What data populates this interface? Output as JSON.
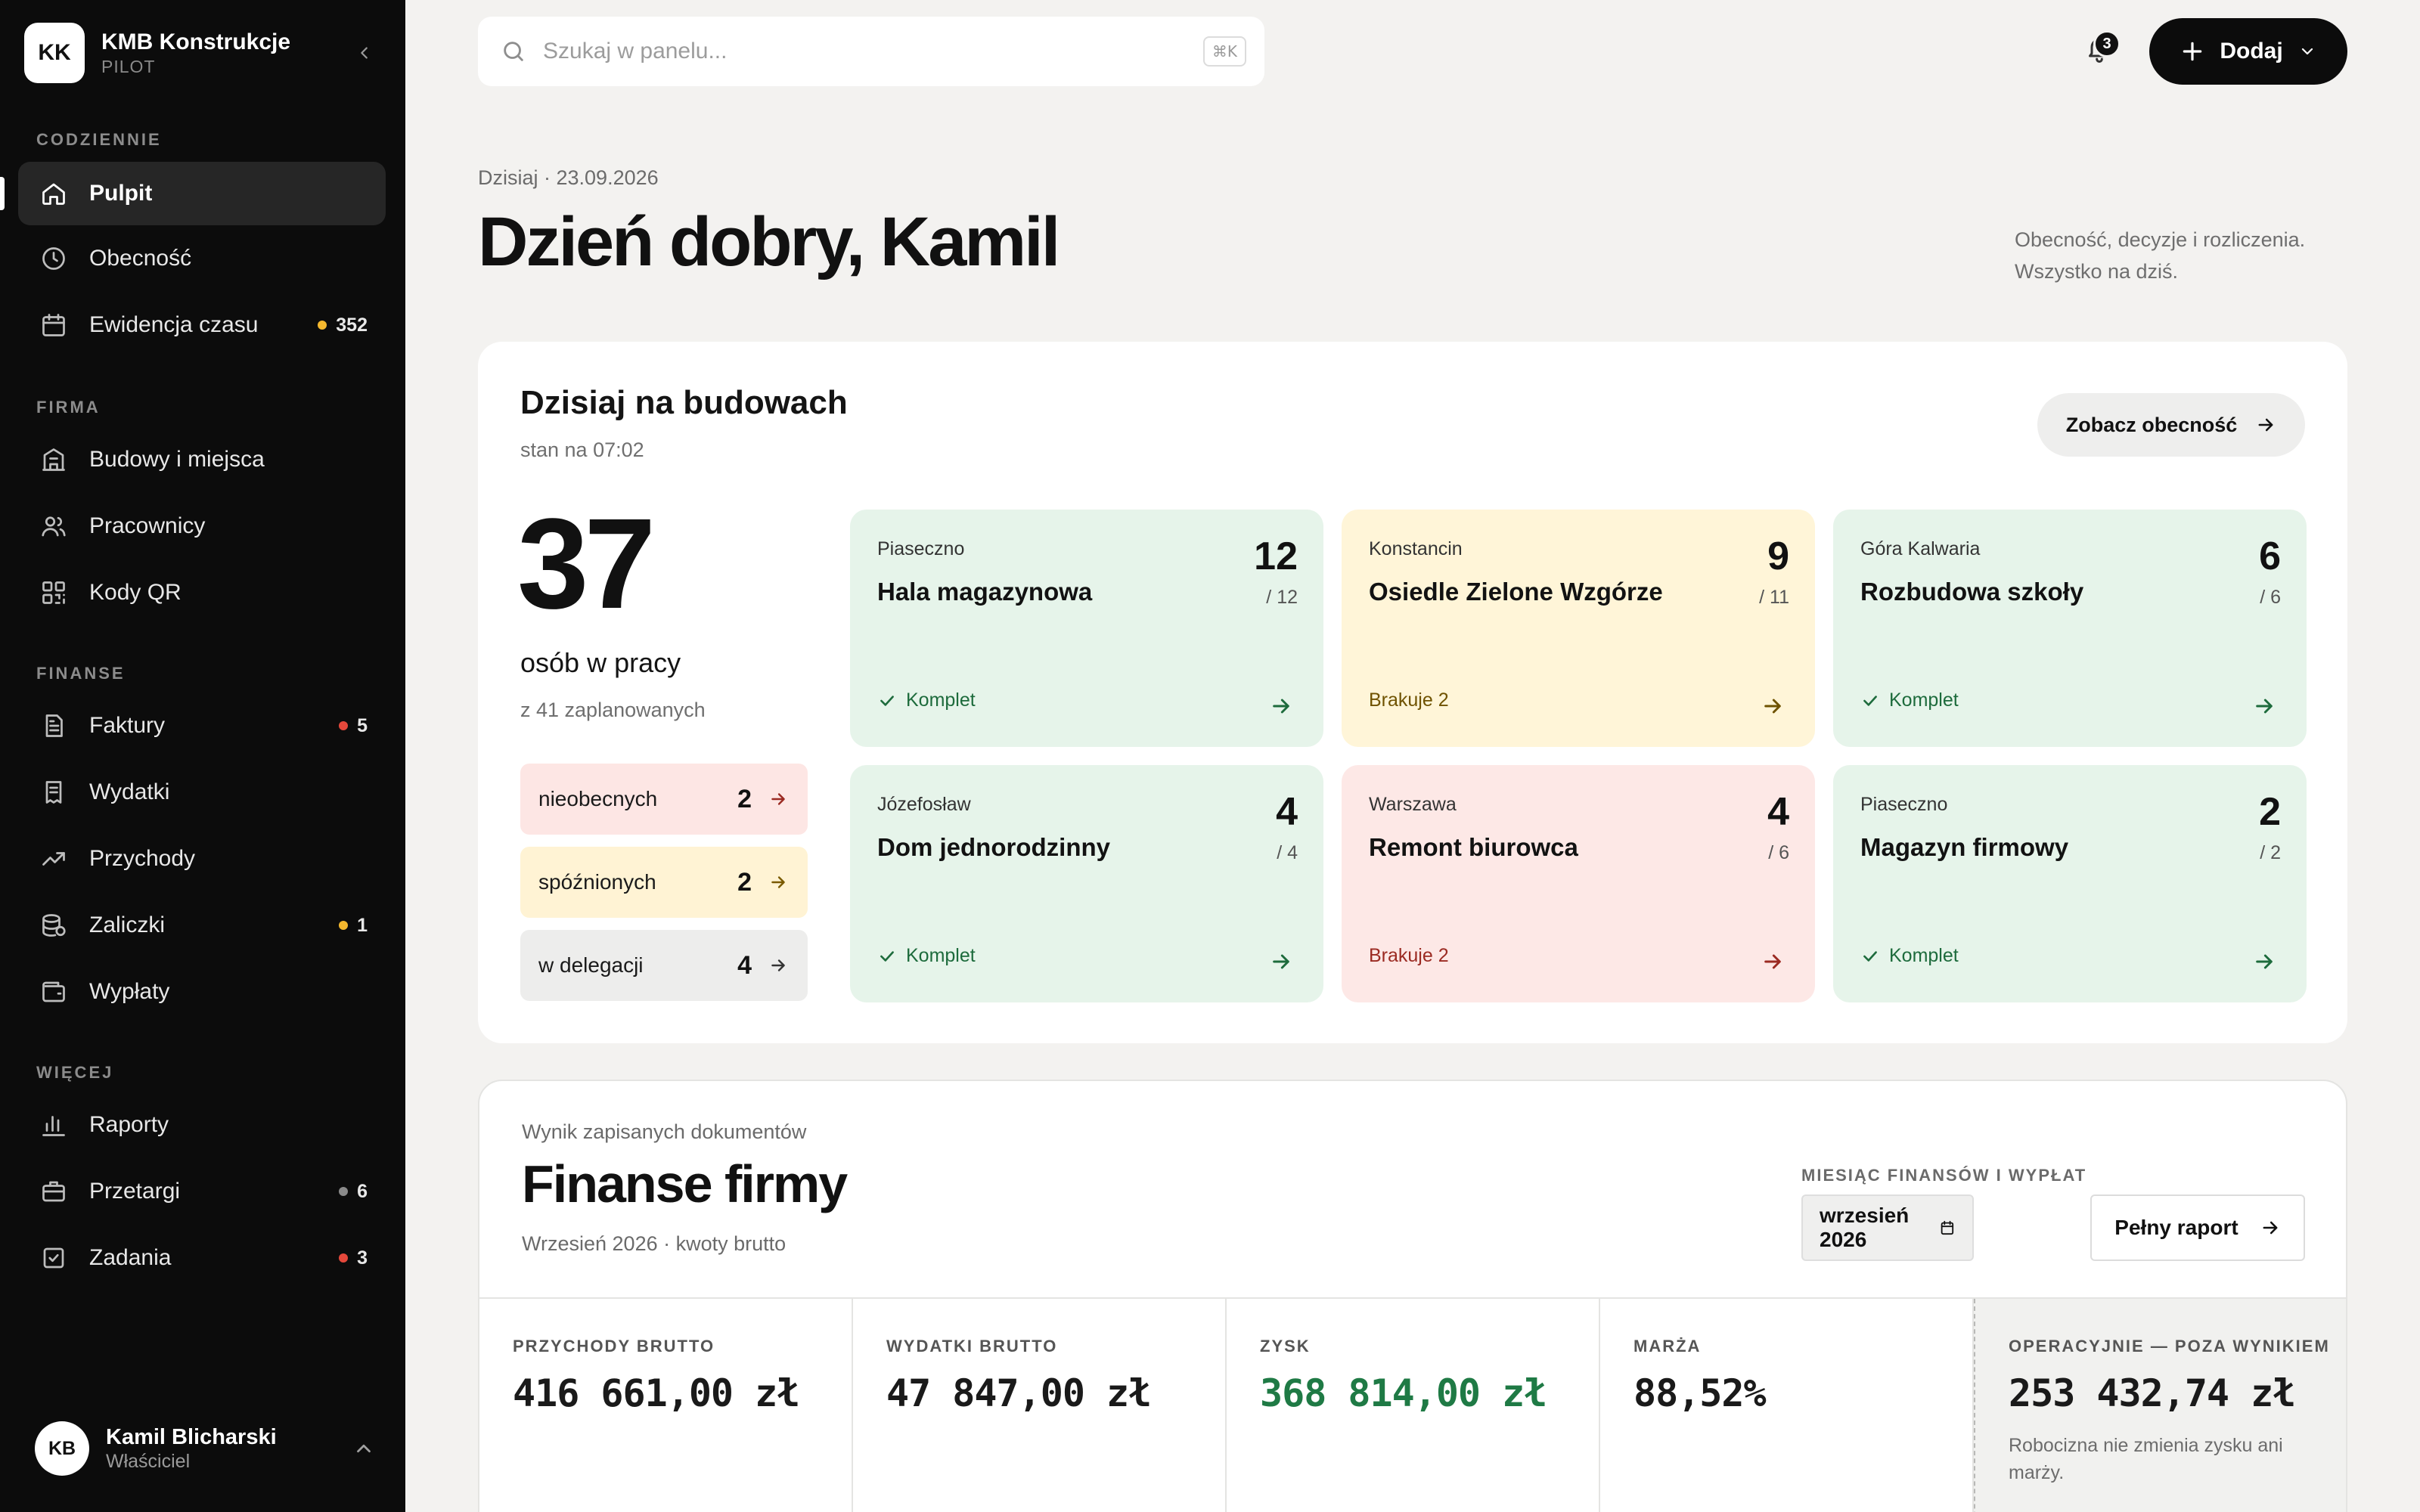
{
  "brand": {
    "initials": "KK",
    "name": "KMB Konstrukcje",
    "plan": "PILOT"
  },
  "sidebar": {
    "sections": [
      {
        "title": "CODZIENNIE"
      },
      {
        "title": "FIRMA"
      },
      {
        "title": "FINANSE"
      },
      {
        "title": "WIĘCEJ"
      }
    ],
    "items": [
      {
        "label": "Pulpit",
        "icon": "home-icon",
        "active": true
      },
      {
        "label": "Obecność",
        "icon": "clock-icon"
      },
      {
        "label": "Ewidencja czasu",
        "icon": "calendar-icon",
        "badge": "352",
        "badge_color": "#f5b82e"
      },
      {
        "label": "Budowy i miejsca",
        "icon": "building-icon"
      },
      {
        "label": "Pracownicy",
        "icon": "users-icon"
      },
      {
        "label": "Kody QR",
        "icon": "qr-icon"
      },
      {
        "label": "Faktury",
        "icon": "invoice-icon",
        "badge": "5",
        "badge_color": "#e5483b"
      },
      {
        "label": "Wydatki",
        "icon": "receipt-icon"
      },
      {
        "label": "Przychody",
        "icon": "trend-up-icon"
      },
      {
        "label": "Zaliczki",
        "icon": "coins-icon",
        "badge": "1",
        "badge_color": "#f5b82e"
      },
      {
        "label": "Wypłaty",
        "icon": "wallet-icon"
      },
      {
        "label": "Raporty",
        "icon": "bar-chart-icon"
      },
      {
        "label": "Przetargi",
        "icon": "briefcase-icon",
        "badge": "6",
        "badge_color": "#8a8a8a"
      },
      {
        "label": "Zadania",
        "icon": "checkbox-icon",
        "badge": "3",
        "badge_color": "#e5483b"
      }
    ]
  },
  "user": {
    "initials": "KB",
    "name": "Kamil Blicharski",
    "role": "Właściciel"
  },
  "topbar": {
    "search_placeholder": "Szukaj w panelu...",
    "shortcut": "⌘K",
    "notifications": "3",
    "add_label": "Dodaj"
  },
  "header": {
    "date": "Dzisiaj · 23.09.2026",
    "greeting": "Dzień dobry, Kamil",
    "note_line1": "Obecność, decyzje i rozliczenia.",
    "note_line2": "Wszystko na dziś."
  },
  "today": {
    "title": "Dzisiaj na budowach",
    "subtitle": "stan na 07:02",
    "button": "Zobacz obecność",
    "present": "37",
    "present_label": "osób w pracy",
    "planned": "z 41 zaplanowanych",
    "statuses": [
      {
        "label": "nieobecnych",
        "value": "2",
        "color": "red"
      },
      {
        "label": "spóźnionych",
        "value": "2",
        "color": "yellow"
      },
      {
        "label": "w delegacji",
        "value": "4",
        "color": "grey"
      }
    ],
    "sites": [
      {
        "city": "Piaseczno",
        "name": "Hala magazynowa",
        "count": "12",
        "of": "/ 12",
        "status": "Komplet",
        "state": "green"
      },
      {
        "city": "Konstancin",
        "name": "Osiedle Zielone Wzgórze",
        "count": "9",
        "of": "/ 11",
        "status": "Brakuje 2",
        "state": "yellow"
      },
      {
        "city": "Góra Kalwaria",
        "name": "Rozbudowa szkoły",
        "count": "6",
        "of": "/ 6",
        "status": "Komplet",
        "state": "green"
      },
      {
        "city": "Józefosław",
        "name": "Dom jednorodzinny",
        "count": "4",
        "of": "/ 4",
        "status": "Komplet",
        "state": "green"
      },
      {
        "city": "Warszawa",
        "name": "Remont biurowca",
        "count": "4",
        "of": "/ 6",
        "status": "Brakuje 2",
        "state": "red"
      },
      {
        "city": "Piaseczno",
        "name": "Magazyn firmowy",
        "count": "2",
        "of": "/ 2",
        "status": "Komplet",
        "state": "green"
      }
    ]
  },
  "finance": {
    "kicker": "Wynik zapisanych dokumentów",
    "title": "Finanse firmy",
    "subtitle": "Wrzesień 2026 · kwoty brutto",
    "month_label": "MIESIĄC FINANSÓW I WYPŁAT",
    "month_value": "wrzesień 2026",
    "report_button": "Pełny raport",
    "kpis": [
      {
        "label": "PRZYCHODY BRUTTO",
        "value": "416 661,00 zł"
      },
      {
        "label": "WYDATKI BRUTTO",
        "value": "47 847,00 zł"
      },
      {
        "label": "ZYSK",
        "value": "368 814,00 zł"
      },
      {
        "label": "MARŻA",
        "value": "88,52%"
      },
      {
        "label": "OPERACYJNIE — POZA WYNIKIEM",
        "value": "253 432,74 zł",
        "note": "Robocizna nie zmienia zysku ani marży."
      }
    ]
  }
}
